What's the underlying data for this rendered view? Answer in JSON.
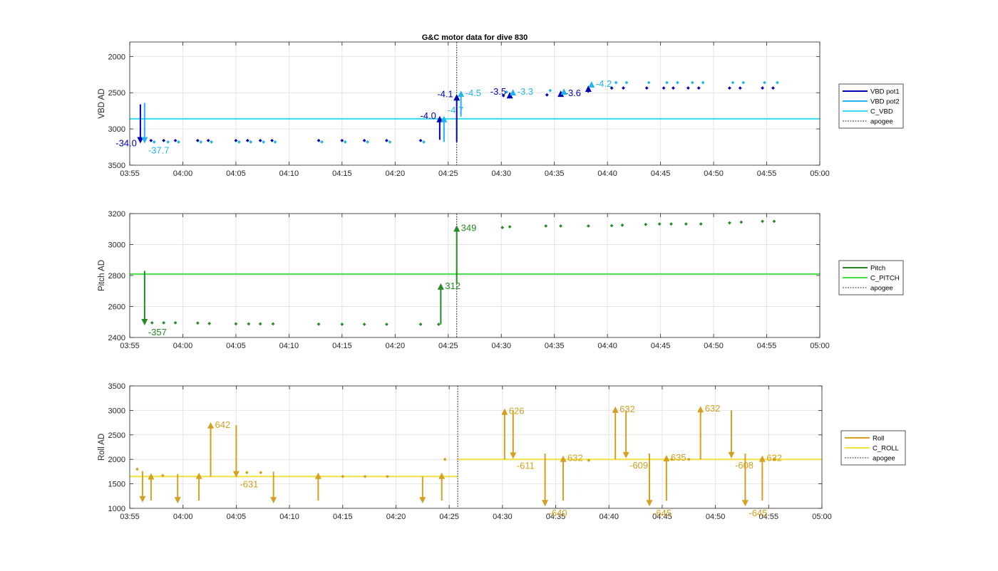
{
  "chart_data": [
    {
      "type": "line",
      "title": "G&C motor data for dive 830",
      "xlabel": "",
      "ylabel": "VBD AD",
      "xlim": [
        "03:55",
        "05:00"
      ],
      "ylim": [
        1800,
        3500
      ],
      "y_reversed": true,
      "xticks": [
        "03:55",
        "04:00",
        "04:05",
        "04:10",
        "04:15",
        "04:20",
        "04:25",
        "04:30",
        "04:35",
        "04:40",
        "04:45",
        "04:50",
        "04:55",
        "05:00"
      ],
      "yticks": [
        "2000",
        "2500",
        "3000",
        "3500"
      ],
      "grid": true,
      "legend_placement": "outside-right",
      "legend": [
        "VBD pot1",
        "VBD pot2",
        "C_VBD",
        "apogee"
      ],
      "colors": {
        "pot1": "#0000b3",
        "pot2": "#22b4f0",
        "c_line": "#33ddf0"
      },
      "c_value": 2860,
      "apogee": "04:25.8",
      "series": [
        {
          "name": "VBD pot1",
          "points": [
            [
              "03:57.0",
              3160
            ],
            [
              "03:58.2",
              3160
            ],
            [
              "03:59.3",
              3160
            ],
            [
              "04:01.4",
              3160
            ],
            [
              "04:02.4",
              3160
            ],
            [
              "04:05.0",
              3160
            ],
            [
              "04:06.1",
              3160
            ],
            [
              "04:07.3",
              3160
            ],
            [
              "04:08.4",
              3160
            ],
            [
              "04:12.8",
              3160
            ],
            [
              "04:15.0",
              3160
            ],
            [
              "04:17.1",
              3160
            ],
            [
              "04:19.2",
              3160
            ],
            [
              "04:22.4",
              3160
            ],
            [
              "04:30.2",
              2540
            ],
            [
              "04:34.3",
              2530
            ],
            [
              "04:40.4",
              2435
            ],
            [
              "04:41.5",
              2435
            ],
            [
              "04:43.7",
              2435
            ],
            [
              "04:45.3",
              2435
            ],
            [
              "04:46.2",
              2435
            ],
            [
              "04:47.6",
              2435
            ],
            [
              "04:48.6",
              2435
            ],
            [
              "04:51.5",
              2435
            ],
            [
              "04:52.5",
              2435
            ],
            [
              "04:54.6",
              2435
            ],
            [
              "04:55.6",
              2435
            ]
          ]
        },
        {
          "name": "VBD pot2",
          "points": [
            [
              "03:57.3",
              3180
            ],
            [
              "03:58.6",
              3180
            ],
            [
              "03:59.6",
              3180
            ],
            [
              "04:01.7",
              3180
            ],
            [
              "04:02.7",
              3180
            ],
            [
              "04:05.3",
              3180
            ],
            [
              "04:06.4",
              3180
            ],
            [
              "04:07.6",
              3180
            ],
            [
              "04:08.7",
              3180
            ],
            [
              "04:13.1",
              3180
            ],
            [
              "04:15.3",
              3180
            ],
            [
              "04:17.4",
              3180
            ],
            [
              "04:19.5",
              3180
            ],
            [
              "04:22.7",
              3180
            ],
            [
              "04:30.5",
              2490
            ],
            [
              "04:34.6",
              2470
            ],
            [
              "04:40.8",
              2360
            ],
            [
              "04:41.8",
              2360
            ],
            [
              "04:43.9",
              2360
            ],
            [
              "04:45.6",
              2360
            ],
            [
              "04:46.6",
              2360
            ],
            [
              "04:48.0",
              2360
            ],
            [
              "04:49.0",
              2360
            ],
            [
              "04:51.8",
              2360
            ],
            [
              "04:52.8",
              2360
            ],
            [
              "04:54.8",
              2360
            ],
            [
              "04:56.0",
              2360
            ]
          ]
        }
      ],
      "moves": [
        {
          "series": "pot1",
          "t": "03:56.0",
          "from": 2660,
          "to": 3200,
          "label": "-34.0",
          "label_side": "left"
        },
        {
          "series": "pot2",
          "t": "03:56.4",
          "from": 2640,
          "to": 3200,
          "label": "-37.7",
          "label_side": "below"
        },
        {
          "series": "pot1",
          "t": "04:24.2",
          "from": 3150,
          "to": 2820,
          "label": "-4.0",
          "label_side": "left"
        },
        {
          "series": "pot2",
          "t": "04:24.6",
          "from": 3180,
          "to": 2820,
          "label": "-4.7",
          "label_side": "below"
        },
        {
          "series": "pot1",
          "t": "04:25.8",
          "from": 3180,
          "to": 2520,
          "label": "-4.1",
          "label_side": "left"
        },
        {
          "series": "pot2",
          "t": "04:26.2",
          "from": 2830,
          "to": 2470,
          "label": "-4.5",
          "label_side": "right"
        },
        {
          "series": "pot1",
          "t": "04:30.8",
          "from": 2560,
          "to": 2490,
          "label": "-3.5",
          "label_side": "left"
        },
        {
          "series": "pot2",
          "t": "04:31.1",
          "from": 2500,
          "to": 2450,
          "label": "-3.3",
          "label_side": "right"
        },
        {
          "series": "pot1",
          "t": "04:35.6",
          "from": 2530,
          "to": 2470,
          "label": "-3.6",
          "label_side": "right"
        },
        {
          "series": "pot2",
          "t": "04:35.9",
          "from": 2480,
          "to": 2440,
          "label": "",
          "label_side": "right"
        },
        {
          "series": "pot1",
          "t": "04:38.2",
          "from": 2500,
          "to": 2400,
          "label": "",
          "label_side": "right"
        },
        {
          "series": "pot2",
          "t": "04:38.5",
          "from": 2420,
          "to": 2340,
          "label": "-4.2",
          "label_side": "right"
        }
      ]
    },
    {
      "type": "line",
      "title": "",
      "xlabel": "",
      "ylabel": "Pitch AD",
      "xlim": [
        "03:55",
        "05:00"
      ],
      "ylim": [
        2400,
        3200
      ],
      "y_reversed": false,
      "xticks": [
        "03:55",
        "04:00",
        "04:05",
        "04:10",
        "04:15",
        "04:20",
        "04:25",
        "04:30",
        "04:35",
        "04:40",
        "04:45",
        "04:50",
        "04:55",
        "05:00"
      ],
      "yticks": [
        "2400",
        "2600",
        "2800",
        "3000",
        "3200"
      ],
      "grid": true,
      "legend_placement": "outside-right",
      "legend": [
        "Pitch",
        "C_PITCH",
        "apogee"
      ],
      "colors": {
        "main": "#228b22",
        "c_line": "#44dd44"
      },
      "c_value": 2810,
      "apogee": "04:25.8",
      "series": [
        {
          "name": "Pitch",
          "points": [
            [
              "03:57.1",
              2495
            ],
            [
              "03:58.2",
              2495
            ],
            [
              "03:59.3",
              2495
            ],
            [
              "04:01.4",
              2493
            ],
            [
              "04:02.5",
              2490
            ],
            [
              "04:05.0",
              2488
            ],
            [
              "04:06.2",
              2488
            ],
            [
              "04:07.3",
              2488
            ],
            [
              "04:08.5",
              2488
            ],
            [
              "04:12.8",
              2486
            ],
            [
              "04:15.0",
              2485
            ],
            [
              "04:17.1",
              2485
            ],
            [
              "04:19.2",
              2485
            ],
            [
              "04:22.4",
              2485
            ],
            [
              "04:24.1",
              2485
            ],
            [
              "04:30.1",
              3110
            ],
            [
              "04:30.8",
              3115
            ],
            [
              "04:34.2",
              3120
            ],
            [
              "04:35.6",
              3120
            ],
            [
              "04:38.2",
              3120
            ],
            [
              "04:40.4",
              3122
            ],
            [
              "04:41.4",
              3125
            ],
            [
              "04:43.6",
              3130
            ],
            [
              "04:44.9",
              3133
            ],
            [
              "04:46.0",
              3133
            ],
            [
              "04:47.4",
              3133
            ],
            [
              "04:48.8",
              3133
            ],
            [
              "04:51.5",
              3140
            ],
            [
              "04:52.6",
              3145
            ],
            [
              "04:54.6",
              3150
            ],
            [
              "04:55.7",
              3150
            ]
          ]
        }
      ],
      "moves": [
        {
          "series": "main",
          "t": "03:56.4",
          "from": 2830,
          "to": 2478,
          "label": "-357",
          "label_side": "below"
        },
        {
          "series": "main",
          "t": "04:24.3",
          "from": 2485,
          "to": 2750,
          "label": "312",
          "label_side": "right"
        },
        {
          "series": "main",
          "t": "04:25.8",
          "from": 2750,
          "to": 3125,
          "label": "349",
          "label_side": "right"
        }
      ]
    },
    {
      "type": "line",
      "title": "",
      "xlabel": "",
      "ylabel": "Roll AD",
      "xlim": [
        "03:55",
        "05:00"
      ],
      "ylim": [
        1000,
        3500
      ],
      "y_reversed": false,
      "xticks": [
        "03:55",
        "04:00",
        "04:05",
        "04:10",
        "04:15",
        "04:20",
        "04:25",
        "04:30",
        "04:35",
        "04:40",
        "04:45",
        "04:50",
        "04:55",
        "05:00"
      ],
      "yticks": [
        "1000",
        "1500",
        "2000",
        "2500",
        "3000",
        "3500"
      ],
      "grid": true,
      "legend_placement": "outside-right",
      "legend": [
        "Roll",
        "C_ROLL",
        "apogee"
      ],
      "colors": {
        "main": "#d4a020",
        "c_line": "#f0e040"
      },
      "c_segments": [
        [
          "03:55",
          "04:25.8",
          1650
        ],
        [
          "04:25.8",
          "05:00",
          2000
        ]
      ],
      "apogee": "04:25.8",
      "series": [
        {
          "name": "Roll",
          "points": [
            [
              "03:55.7",
              1800
            ],
            [
              "03:58.1",
              1670
            ],
            [
              "04:06.0",
              1730
            ],
            [
              "04:07.3",
              1730
            ],
            [
              "04:15.0",
              1650
            ],
            [
              "04:17.1",
              1650
            ],
            [
              "04:19.2",
              1650
            ],
            [
              "04:24.6",
              2000
            ],
            [
              "04:38.1",
              1980
            ],
            [
              "04:45.9",
              2000
            ],
            [
              "04:47.5",
              2000
            ],
            [
              "04:55.5",
              2000
            ]
          ]
        }
      ],
      "moves": [
        {
          "series": "main",
          "t": "03:56.2",
          "from": 1760,
          "to": 1120,
          "label": "",
          "label_side": "right"
        },
        {
          "series": "main",
          "t": "03:57.0",
          "from": 1160,
          "to": 1720,
          "label": "",
          "label_side": "right"
        },
        {
          "series": "main",
          "t": "03:59.5",
          "from": 1700,
          "to": 1100,
          "label": "",
          "label_side": "right"
        },
        {
          "series": "main",
          "t": "04:01.5",
          "from": 1160,
          "to": 1730,
          "label": "",
          "label_side": "right"
        },
        {
          "series": "main",
          "t": "04:02.6",
          "from": 1650,
          "to": 2760,
          "label": "642",
          "label_side": "right"
        },
        {
          "series": "main",
          "t": "04:05.0",
          "from": 2700,
          "to": 1630,
          "label": "-631",
          "label_side": "below"
        },
        {
          "series": "main",
          "t": "04:08.5",
          "from": 1750,
          "to": 1100,
          "label": "",
          "label_side": "right"
        },
        {
          "series": "main",
          "t": "04:12.7",
          "from": 1160,
          "to": 1730,
          "label": "",
          "label_side": "right"
        },
        {
          "series": "main",
          "t": "04:22.5",
          "from": 1650,
          "to": 1100,
          "label": "",
          "label_side": "right"
        },
        {
          "series": "main",
          "t": "04:24.3",
          "from": 1160,
          "to": 1730,
          "label": "",
          "label_side": "right"
        },
        {
          "series": "main",
          "t": "04:30.2",
          "from": 2000,
          "to": 3040,
          "label": "626",
          "label_side": "right"
        },
        {
          "series": "main",
          "t": "04:31.0",
          "from": 3000,
          "to": 2010,
          "label": "-611",
          "label_side": "below"
        },
        {
          "series": "main",
          "t": "04:34.0",
          "from": 2120,
          "to": 1040,
          "label": "-640",
          "label_side": "below"
        },
        {
          "series": "main",
          "t": "04:35.7",
          "from": 1160,
          "to": 2080,
          "label": "632",
          "label_side": "right"
        },
        {
          "series": "main",
          "t": "04:40.6",
          "from": 2000,
          "to": 3080,
          "label": "632",
          "label_side": "right"
        },
        {
          "series": "main",
          "t": "04:41.6",
          "from": 3000,
          "to": 2020,
          "label": "-609",
          "label_side": "below"
        },
        {
          "series": "main",
          "t": "04:43.8",
          "from": 2120,
          "to": 1040,
          "label": "-645",
          "label_side": "below"
        },
        {
          "series": "main",
          "t": "04:45.4",
          "from": 1160,
          "to": 2090,
          "label": "635",
          "label_side": "right"
        },
        {
          "series": "main",
          "t": "04:48.6",
          "from": 2000,
          "to": 3090,
          "label": "632",
          "label_side": "right"
        },
        {
          "series": "main",
          "t": "04:51.5",
          "from": 3000,
          "to": 2020,
          "label": "-608",
          "label_side": "below"
        },
        {
          "series": "main",
          "t": "04:52.8",
          "from": 2120,
          "to": 1040,
          "label": "-645",
          "label_side": "below"
        },
        {
          "series": "main",
          "t": "04:54.4",
          "from": 1160,
          "to": 2080,
          "label": "632",
          "label_side": "right"
        }
      ]
    }
  ]
}
